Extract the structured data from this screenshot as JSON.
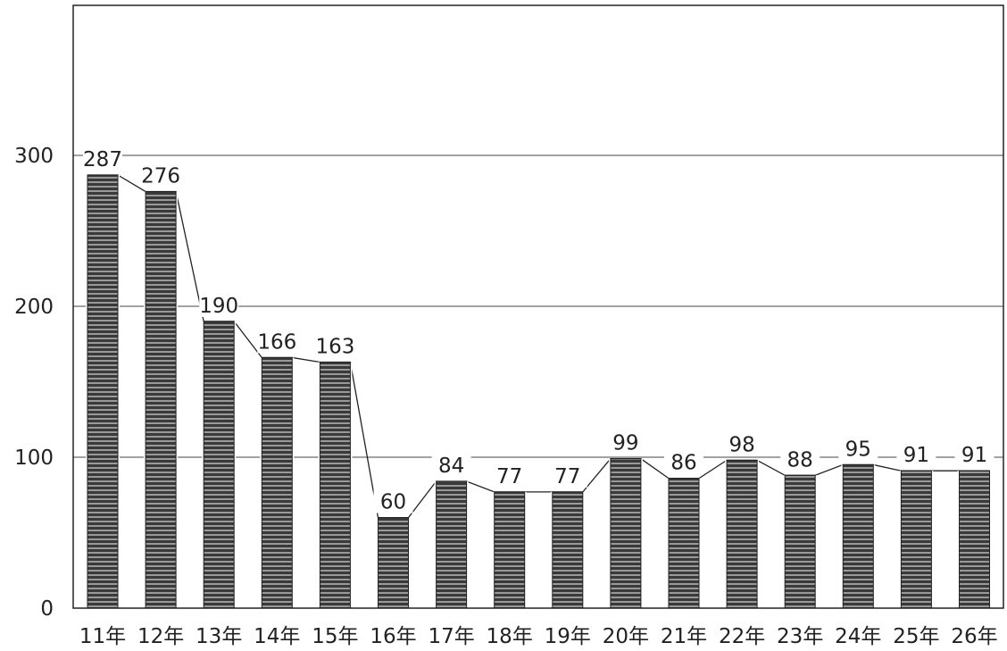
{
  "chart_data": {
    "type": "bar",
    "title": "",
    "xlabel": "",
    "ylabel": "",
    "categories": [
      "11年",
      "12年",
      "13年",
      "14年",
      "15年",
      "16年",
      "17年",
      "18年",
      "19年",
      "20年",
      "21年",
      "22年",
      "23年",
      "24年",
      "25年",
      "26年"
    ],
    "values": [
      287,
      276,
      190,
      166,
      163,
      60,
      84,
      77,
      77,
      99,
      86,
      98,
      88,
      95,
      91,
      91
    ],
    "ylim": [
      0,
      400
    ],
    "yticks": [
      "0",
      "100",
      "200",
      "300"
    ],
    "grid": true,
    "connector_line": true,
    "colors": {
      "bar": "#3a3a3a",
      "stripe": "#d8d8d8",
      "line": "#222222",
      "grid": "#444444",
      "frame": "#222222"
    }
  }
}
